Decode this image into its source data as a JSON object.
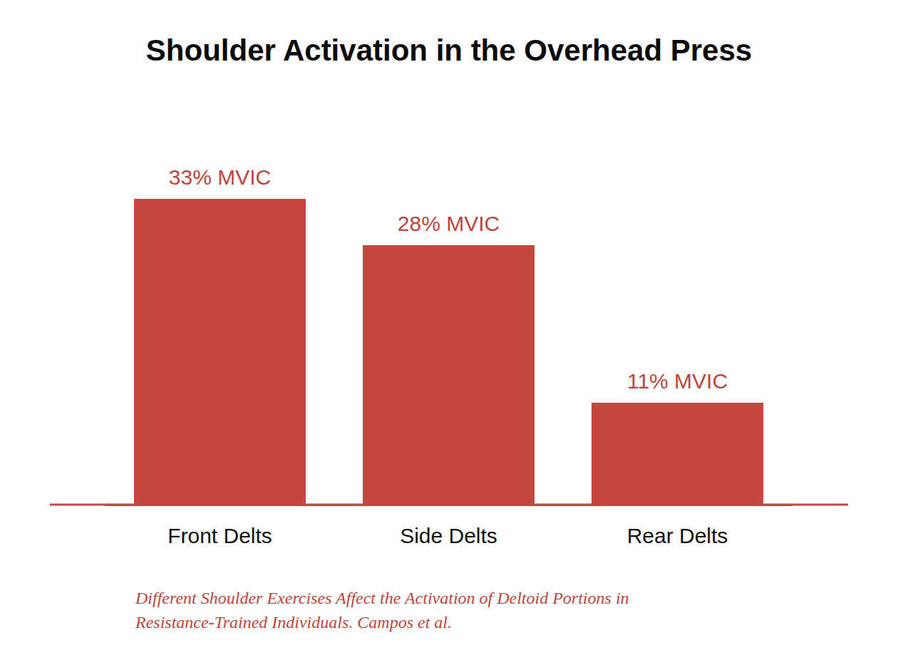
{
  "chart_data": {
    "type": "bar",
    "title": "Shoulder Activation in the Overhead Press",
    "source": "Different Shoulder Exercises Affect the Activation of Deltoid Portions in Resistance-Trained Individuals. Campos et al.",
    "categories": [
      "Front Delts",
      "Side Delts",
      "Rear Delts"
    ],
    "values": [
      33,
      28,
      11
    ],
    "value_labels": [
      "33% MVIC",
      "28% MVIC",
      "11% MVIC"
    ],
    "color": "#c5463f",
    "ylim": [
      0,
      33
    ],
    "grid": false,
    "data_labels": true,
    "tick_labels": "x"
  }
}
